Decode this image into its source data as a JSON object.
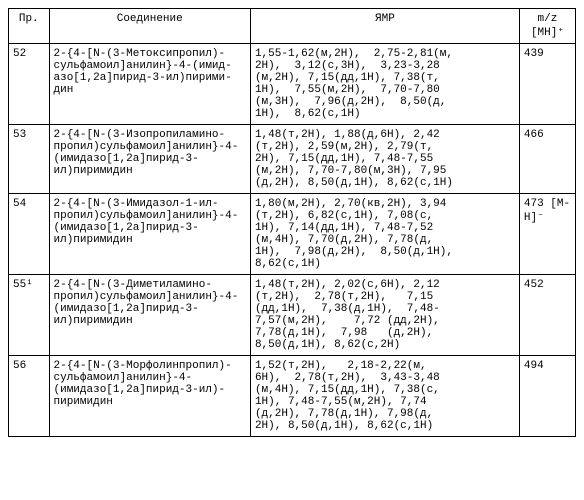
{
  "headers": {
    "pr": "Пр.",
    "compound": "Соединение",
    "nmr": "ЯМР",
    "mz": "m/z\n[MH]⁺"
  },
  "rows": [
    {
      "pr": "52",
      "compound": "2-{4-[N-(3-Метоксипропил)-сульфамоил]анилин}-4-(имид-азо[1,2a]пирид-3-ил)пирими-дин",
      "nmr": "1,55-1,62(м,2H),  2,75-2,81(м,\n2H),  3,12(с,3H),  3,23-3,28\n(м,2H), 7,15(дд,1H), 7,38(т,\n1H),  7,55(м,2H),  7,70-7,80\n(м,3H),  7,96(д,2H),  8,50(д,\n1H),  8,62(с,1H)",
      "mz": "439"
    },
    {
      "pr": "53",
      "compound": "2-{4-[N-(3-Изопропиламино-пропил)сульфамоил]анилин}-4-(имидазо[1,2a]пирид-3-ил)пиримидин",
      "nmr": "1,48(т,2H), 1,88(д,6H), 2,42\n(т,2H), 2,59(м,2H), 2,79(т,\n2H), 7,15(дд,1H), 7,48-7,55\n(м,2H), 7,70-7,80(м,3H), 7,95\n(д,2H), 8,50(д,1H), 8,62(с,1H)",
      "mz": "466"
    },
    {
      "pr": "54",
      "compound": "2-{4-[N-(3-Имидазол-1-ил-пропил)сульфамоил]анилин}-4-(имидазо[1,2a]пирид-3-ил)пиримидин",
      "nmr": "1,80(м,2H), 2,70(кв,2H), 3,94\n(т,2H), 6,82(с,1H), 7,08(с,\n1H), 7,14(дд,1H), 7,48-7,52\n(м,4H), 7,70(д,2H), 7,78(д,\n1H),  7,98(д,2H),  8,50(д,1H),\n8,62(с,1H)",
      "mz": "473\n[M-H]⁻"
    },
    {
      "pr": "55¹",
      "compound": "2-{4-[N-(3-Диметиламино-пропил)сульфамоил]анилин}-4-(имидазо[1,2a]пирид-3-ил)пиримидин",
      "nmr": "1,48(т,2H), 2,02(с,6H), 2,12\n(т,2H),  2,78(т,2H),   7,15\n(дд,1H),  7,38(д,1H),  7,48-\n7,57(м,2H),    7,72 (дд,2H),\n7,78(д,1H),  7,98   (д,2H),\n8,50(д,1H), 8,62(с,2H)",
      "mz": "452"
    },
    {
      "pr": "56",
      "compound": "2-{4-[N-(3-Морфолинпропил)-сульфамоил]анилин}-4-(имидазо[1,2a]пирид-3-ил)-пиримидин",
      "nmr": "1,52(т,2H),   2,18-2,22(м,\n6H),  2,78(т,2H),  3,43-3,48\n(м,4H), 7,15(дд,1H), 7,38(с,\n1H), 7,48-7,55(м,2H), 7,74\n(д,2H), 7,78(д,1H), 7,98(д,\n2H), 8,50(д,1H), 8,62(с,1H)",
      "mz": "494"
    }
  ]
}
